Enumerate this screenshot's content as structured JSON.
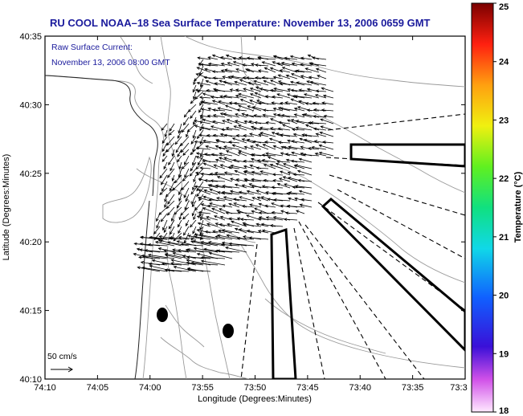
{
  "title": "RU COOL  NOAA–18  Sea Surface Temperature:  November 13, 2006 0659 GMT",
  "legend": {
    "line1": "Raw Surface Current:",
    "line2": "November 13, 2006 08:00 GMT"
  },
  "scale_label": "50 cm/s",
  "x_axis": {
    "label": "Longitude (Degrees:Minutes)",
    "ticks": [
      "74:10",
      "74:05",
      "74:00",
      "73:55",
      "73:50",
      "73:45",
      "73:40",
      "73:35",
      "73:3"
    ]
  },
  "y_axis": {
    "label": "Latitude (Degrees:Minutes)",
    "ticks": [
      "40:35",
      "40:30",
      "40:25",
      "40:20",
      "40:15",
      "40:10"
    ]
  },
  "colorbar": {
    "label": "Temperature (°C)",
    "ticks": [
      "25",
      "24",
      "23",
      "22",
      "21",
      "20",
      "19",
      "18"
    ],
    "range": [
      18,
      25
    ]
  },
  "colors": {
    "title": "#1a1a9c",
    "axes": "#000000",
    "contour": "#9a9a9a",
    "vector": "#000000"
  }
}
